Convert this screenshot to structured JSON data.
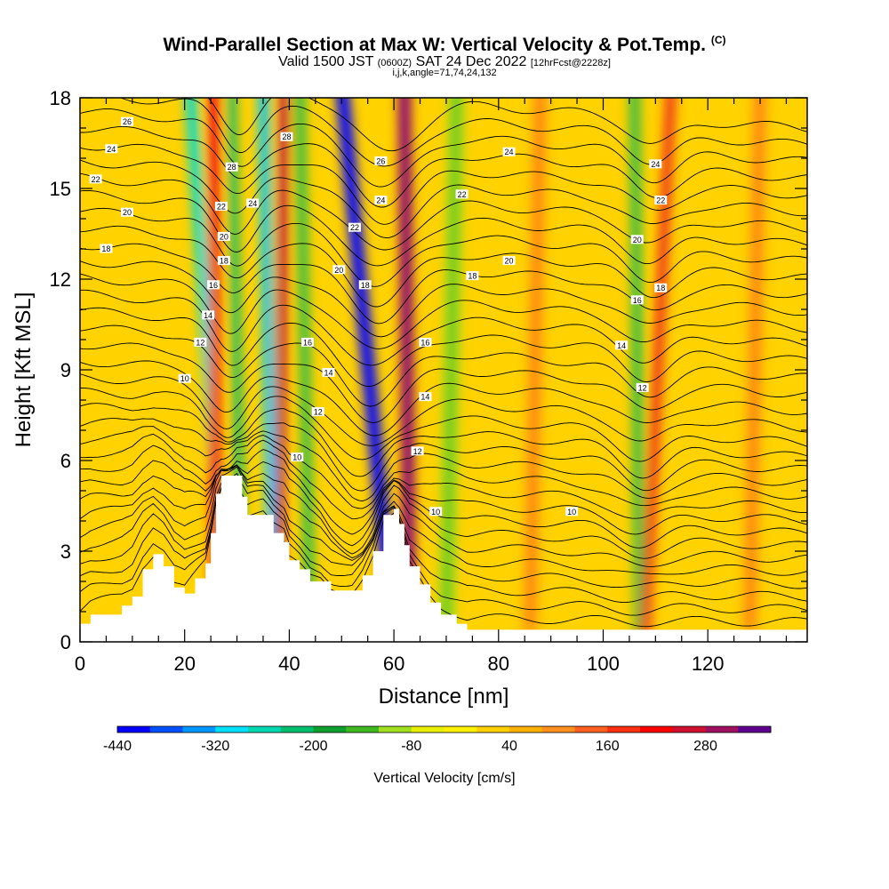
{
  "title": {
    "main": "Wind-Parallel Section at Max W: Vertical Velocity & Pot.Temp.",
    "copyright": "(C)",
    "valid_prefix": "Valid 1500 JST",
    "valid_utc": "(0600Z)",
    "valid_date": "SAT 24 Dec 2022",
    "forecast": "[12hrFcst@2228z]",
    "indices": "i,j,k,angle=71,74,24,132"
  },
  "chart_data": {
    "type": "heatmap",
    "xlabel": "Distance [nm]",
    "ylabel": "Height [Kft MSL]",
    "xlim": [
      0,
      139
    ],
    "ylim": [
      0,
      18
    ],
    "xticks": [
      "0",
      "20",
      "40",
      "60",
      "80",
      "100",
      "120"
    ],
    "yticks": [
      "0",
      "3",
      "6",
      "9",
      "12",
      "15",
      "18"
    ],
    "colorbar": {
      "label": "Vertical Velocity [cm/s]",
      "ticks": [
        "-440",
        "-320",
        "-200",
        "-80",
        "40",
        "160",
        "280"
      ],
      "colors": [
        "#0000ff",
        "#0050ff",
        "#0096ff",
        "#00e0ff",
        "#00d8b0",
        "#00c070",
        "#10a030",
        "#40b820",
        "#a0e020",
        "#e8f000",
        "#fff000",
        "#ffd000",
        "#ffb000",
        "#ff9020",
        "#ff6020",
        "#ff3010",
        "#ff0000",
        "#d01030",
        "#a01060",
        "#600090"
      ]
    },
    "terrain": [
      [
        0,
        0.6
      ],
      [
        2,
        0.9
      ],
      [
        8,
        1.2
      ],
      [
        10,
        1.5
      ],
      [
        12,
        2.4
      ],
      [
        14,
        2.9
      ],
      [
        16,
        2.5
      ],
      [
        18,
        1.8
      ],
      [
        20,
        1.6
      ],
      [
        22,
        2.1
      ],
      [
        24,
        2.6
      ],
      [
        25,
        3.6
      ],
      [
        26,
        4.9
      ],
      [
        27,
        5.5
      ],
      [
        30,
        5.5
      ],
      [
        31,
        4.8
      ],
      [
        32,
        4.2
      ],
      [
        35,
        4.2
      ],
      [
        37,
        3.6
      ],
      [
        39,
        3.3
      ],
      [
        40,
        2.7
      ],
      [
        42,
        2.4
      ],
      [
        44,
        2.0
      ],
      [
        46,
        2.0
      ],
      [
        48,
        1.7
      ],
      [
        52,
        1.7
      ],
      [
        54,
        2.2
      ],
      [
        56,
        3.0
      ],
      [
        58,
        4.2
      ],
      [
        60,
        4.4
      ],
      [
        61,
        3.9
      ],
      [
        62,
        3.2
      ],
      [
        63,
        2.5
      ],
      [
        65,
        1.9
      ],
      [
        67,
        1.3
      ],
      [
        69,
        0.9
      ],
      [
        72,
        0.6
      ],
      [
        74,
        0.4
      ],
      [
        139,
        0.3
      ]
    ],
    "velocity_bands": [
      {
        "x_top": 21,
        "x_bottom": 28,
        "width": 2.2,
        "value": -250
      },
      {
        "x_top": 25.5,
        "x_bottom": 26,
        "width": 2.0,
        "value": 200
      },
      {
        "x_top": 29,
        "x_bottom": 31,
        "width": 1.6,
        "value": -200
      },
      {
        "x_top": 35,
        "x_bottom": 37,
        "width": 2.0,
        "value": -300
      },
      {
        "x_top": 39,
        "x_bottom": 38,
        "width": 1.8,
        "value": 240
      },
      {
        "x_top": 42,
        "x_bottom": 44,
        "width": 2.0,
        "value": -160
      },
      {
        "x_top": 50,
        "x_bottom": 60,
        "width": 2.6,
        "value": -430
      },
      {
        "x_top": 62,
        "x_bottom": 63,
        "width": 2.4,
        "value": 300
      },
      {
        "x_top": 106,
        "x_bottom": 107,
        "width": 2.0,
        "value": -150
      },
      {
        "x_top": 113,
        "x_bottom": 108,
        "width": 1.8,
        "value": 180
      },
      {
        "x_top": 72,
        "x_bottom": 70,
        "width": 3,
        "value": -90
      },
      {
        "x_top": 88,
        "x_bottom": 86,
        "width": 3,
        "value": 60
      },
      {
        "x_top": 130,
        "x_bottom": 128,
        "width": 3,
        "value": 70
      }
    ],
    "contour_labels": [
      {
        "text": "26",
        "x": 9,
        "y": 17.2
      },
      {
        "text": "24",
        "x": 6,
        "y": 16.3
      },
      {
        "text": "22",
        "x": 3,
        "y": 15.3
      },
      {
        "text": "20",
        "x": 9,
        "y": 14.2
      },
      {
        "text": "18",
        "x": 5,
        "y": 13.0
      },
      {
        "text": "10",
        "x": 20,
        "y": 8.7
      },
      {
        "text": "12",
        "x": 23,
        "y": 9.9
      },
      {
        "text": "14",
        "x": 24.5,
        "y": 10.8
      },
      {
        "text": "16",
        "x": 25.5,
        "y": 11.8
      },
      {
        "text": "18",
        "x": 27.5,
        "y": 12.6
      },
      {
        "text": "20",
        "x": 27.5,
        "y": 13.4
      },
      {
        "text": "22",
        "x": 27,
        "y": 14.4
      },
      {
        "text": "28",
        "x": 29,
        "y": 15.7
      },
      {
        "text": "24",
        "x": 33,
        "y": 14.5
      },
      {
        "text": "28",
        "x": 39.5,
        "y": 16.7
      },
      {
        "text": "16",
        "x": 43.5,
        "y": 9.9
      },
      {
        "text": "14",
        "x": 47.5,
        "y": 8.9
      },
      {
        "text": "12",
        "x": 45.5,
        "y": 7.6
      },
      {
        "text": "10",
        "x": 41.5,
        "y": 6.1
      },
      {
        "text": "20",
        "x": 49.5,
        "y": 12.3
      },
      {
        "text": "22",
        "x": 52.5,
        "y": 13.7
      },
      {
        "text": "18",
        "x": 54.5,
        "y": 11.8
      },
      {
        "text": "26",
        "x": 57.5,
        "y": 15.9
      },
      {
        "text": "24",
        "x": 57.5,
        "y": 14.6
      },
      {
        "text": "16",
        "x": 66,
        "y": 9.9
      },
      {
        "text": "14",
        "x": 66,
        "y": 8.1
      },
      {
        "text": "12",
        "x": 64.5,
        "y": 6.3
      },
      {
        "text": "10",
        "x": 68,
        "y": 4.3
      },
      {
        "text": "22",
        "x": 73,
        "y": 14.8
      },
      {
        "text": "18",
        "x": 75,
        "y": 12.1
      },
      {
        "text": "20",
        "x": 82,
        "y": 12.6
      },
      {
        "text": "24",
        "x": 82,
        "y": 16.2
      },
      {
        "text": "10",
        "x": 94,
        "y": 4.3
      },
      {
        "text": "14",
        "x": 103.5,
        "y": 9.8
      },
      {
        "text": "16",
        "x": 106.5,
        "y": 11.3
      },
      {
        "text": "12",
        "x": 107.5,
        "y": 8.4
      },
      {
        "text": "20",
        "x": 106.5,
        "y": 13.3
      },
      {
        "text": "18",
        "x": 111,
        "y": 11.7
      },
      {
        "text": "22",
        "x": 111,
        "y": 14.6
      },
      {
        "text": "24",
        "x": 110,
        "y": 15.8
      }
    ]
  }
}
